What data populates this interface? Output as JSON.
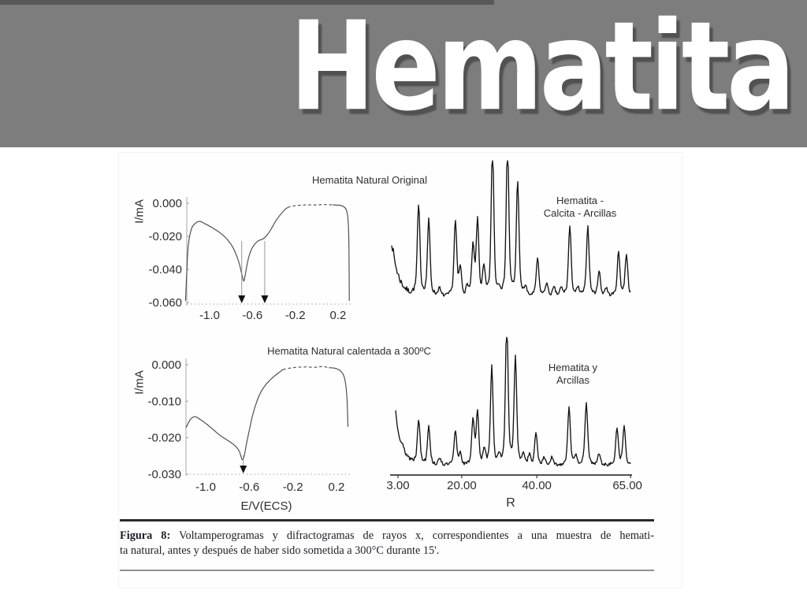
{
  "slide": {
    "title": "Hematita",
    "colors": {
      "band": "#7d7d7d",
      "top_strip": "#585858",
      "background": "#ffffff",
      "title_text": "#ffffff",
      "title_shadow": "#464646",
      "trace_dark": "#141414",
      "trace_gray": "#4a4a4a"
    }
  },
  "figure": {
    "caption": {
      "prefix": "Figura 8:",
      "line1_rest": " Voltamperogramas y difractogramas de rayos x, correspondientes a una muestra de hemati-",
      "line2": "ta natural, antes y después de haber sido sometida a 300°C durante 15'."
    }
  },
  "chart_data": [
    {
      "type": "line",
      "subtype": "voltammogram",
      "title": "Hematita Natural Original",
      "ylabel": "I/mA",
      "xlabel": "",
      "xlim": [
        -1.23,
        0.31
      ],
      "ylim": [
        -0.062,
        0.002
      ],
      "xticks": [
        -1.0,
        -0.6,
        -0.2,
        0.2
      ],
      "xtick_labels": [
        "-1.0",
        "-0.6",
        "-0.2",
        "0.2"
      ],
      "yticks": [
        0.0,
        -0.02,
        -0.04,
        -0.06
      ],
      "ytick_labels": [
        "0.000",
        "-0.020",
        "-0.040",
        "-0.060"
      ],
      "grid": false,
      "arrows_x": [
        -0.7,
        -0.485
      ],
      "series": [
        {
          "name": "cathodic-sweep",
          "style": "solid",
          "points": [
            [
              -1.225,
              -0.059
            ],
            [
              -1.215,
              -0.044
            ],
            [
              -1.2,
              -0.026
            ],
            [
              -1.17,
              -0.0155
            ],
            [
              -1.13,
              -0.012
            ],
            [
              -1.09,
              -0.011
            ],
            [
              -1.04,
              -0.0125
            ],
            [
              -0.97,
              -0.015
            ],
            [
              -0.9,
              -0.018
            ],
            [
              -0.84,
              -0.0215
            ],
            [
              -0.78,
              -0.027
            ],
            [
              -0.73,
              -0.035
            ],
            [
              -0.695,
              -0.044
            ],
            [
              -0.68,
              -0.047
            ],
            [
              -0.665,
              -0.0425
            ],
            [
              -0.64,
              -0.034
            ],
            [
              -0.61,
              -0.028
            ],
            [
              -0.575,
              -0.0245
            ],
            [
              -0.54,
              -0.0225
            ],
            [
              -0.5,
              -0.0215
            ],
            [
              -0.46,
              -0.019
            ],
            [
              -0.42,
              -0.015
            ],
            [
              -0.38,
              -0.0105
            ],
            [
              -0.34,
              -0.007
            ],
            [
              -0.3,
              -0.004
            ],
            [
              -0.27,
              -0.0025
            ]
          ]
        },
        {
          "name": "near-zero-plateau",
          "style": "dashed",
          "points": [
            [
              -0.27,
              -0.0025
            ],
            [
              -0.2,
              -0.0015
            ],
            [
              -0.1,
              -0.001
            ],
            [
              0.0,
              -0.001
            ],
            [
              0.08,
              -0.0008
            ],
            [
              0.15,
              -0.001
            ]
          ]
        },
        {
          "name": "anodic-edge",
          "style": "solid",
          "points": [
            [
              0.15,
              -0.001
            ],
            [
              0.21,
              -0.0012
            ],
            [
              0.25,
              -0.002
            ],
            [
              0.28,
              -0.0045
            ],
            [
              0.295,
              -0.012
            ],
            [
              0.302,
              -0.028
            ],
            [
              0.305,
              -0.059
            ]
          ]
        }
      ]
    },
    {
      "type": "line",
      "subtype": "xrd-diffractogram",
      "label_lines": [
        "Hematita -",
        "Calcita - Arcillas"
      ],
      "xlim": [
        1.3,
        65.0
      ],
      "background_decay": {
        "start_height": 0.41,
        "tau": 1.8
      },
      "noise_level": 0.02,
      "peaks": [
        {
          "r": 8.5,
          "i": 0.58
        },
        {
          "r": 11.2,
          "i": 0.49
        },
        {
          "r": 14.0,
          "i": 0.05
        },
        {
          "r": 18.3,
          "i": 0.48
        },
        {
          "r": 19.6,
          "i": 0.17
        },
        {
          "r": 21.5,
          "i": 0.06
        },
        {
          "r": 23.0,
          "i": 0.31
        },
        {
          "r": 24.2,
          "i": 0.48
        },
        {
          "r": 25.9,
          "i": 0.18
        },
        {
          "r": 28.2,
          "i": 0.98
        },
        {
          "r": 30.0,
          "i": 0.05
        },
        {
          "r": 32.2,
          "i": 1.0
        },
        {
          "r": 34.9,
          "i": 0.75
        },
        {
          "r": 37.0,
          "i": 0.06
        },
        {
          "r": 40.2,
          "i": 0.24
        },
        {
          "r": 42.6,
          "i": 0.08
        },
        {
          "r": 44.6,
          "i": 0.05
        },
        {
          "r": 46.5,
          "i": 0.05
        },
        {
          "r": 48.8,
          "i": 0.45
        },
        {
          "r": 51.0,
          "i": 0.05
        },
        {
          "r": 53.6,
          "i": 0.45
        },
        {
          "r": 56.6,
          "i": 0.16
        },
        {
          "r": 58.5,
          "i": 0.05
        },
        {
          "r": 61.8,
          "i": 0.28
        },
        {
          "r": 63.9,
          "i": 0.27
        }
      ]
    },
    {
      "type": "line",
      "subtype": "voltammogram",
      "title": "Hematita Natural calentada a 300ºC",
      "ylabel": "I/mA",
      "xlabel": "E/V(ECS)",
      "xlim": [
        -1.18,
        0.31
      ],
      "ylim": [
        -0.031,
        0.001
      ],
      "xticks": [
        -1.0,
        -0.6,
        -0.2,
        0.2
      ],
      "xtick_labels": [
        "-1.0",
        "-0.6",
        "-0.2",
        "0.2"
      ],
      "yticks": [
        0.0,
        -0.01,
        -0.02,
        -0.03
      ],
      "ytick_labels": [
        "0.000",
        "-0.010",
        "-0.020",
        "-0.030"
      ],
      "grid": false,
      "arrows_x": [
        -0.655
      ],
      "series": [
        {
          "name": "cathodic-sweep",
          "style": "solid",
          "points": [
            [
              -1.18,
              -0.0172
            ],
            [
              -1.14,
              -0.015
            ],
            [
              -1.1,
              -0.0142
            ],
            [
              -1.05,
              -0.015
            ],
            [
              -0.99,
              -0.0163
            ],
            [
              -0.93,
              -0.0178
            ],
            [
              -0.87,
              -0.0193
            ],
            [
              -0.81,
              -0.0205
            ],
            [
              -0.76,
              -0.0215
            ],
            [
              -0.72,
              -0.0225
            ],
            [
              -0.69,
              -0.0238
            ],
            [
              -0.665,
              -0.026
            ],
            [
              -0.645,
              -0.0248
            ],
            [
              -0.625,
              -0.0215
            ],
            [
              -0.6,
              -0.018
            ],
            [
              -0.575,
              -0.0145
            ],
            [
              -0.55,
              -0.0118
            ],
            [
              -0.52,
              -0.0092
            ],
            [
              -0.49,
              -0.0073
            ],
            [
              -0.45,
              -0.0055
            ],
            [
              -0.41,
              -0.0042
            ],
            [
              -0.37,
              -0.0031
            ],
            [
              -0.33,
              -0.0022
            ],
            [
              -0.29,
              -0.0013
            ]
          ]
        },
        {
          "name": "near-zero-plateau",
          "style": "dashed",
          "points": [
            [
              -0.29,
              -0.0013
            ],
            [
              -0.2,
              -0.0008
            ],
            [
              -0.1,
              -0.0006
            ],
            [
              0.0,
              -0.0007
            ],
            [
              0.07,
              -0.0005
            ],
            [
              0.13,
              -0.0008
            ]
          ]
        },
        {
          "name": "anodic-edge",
          "style": "solid",
          "points": [
            [
              0.13,
              -0.0008
            ],
            [
              0.19,
              -0.001
            ],
            [
              0.24,
              -0.0018
            ],
            [
              0.275,
              -0.0038
            ],
            [
              0.295,
              -0.0085
            ],
            [
              0.305,
              -0.017
            ]
          ]
        }
      ]
    },
    {
      "type": "line",
      "subtype": "xrd-diffractogram",
      "label_lines": [
        "Hematita y",
        "Arcillas"
      ],
      "xlabel": "R",
      "xlim": [
        2.4,
        65.0
      ],
      "xticks": [
        3.0,
        20.0,
        40.0,
        65.0
      ],
      "xtick_labels": [
        "3.00",
        "20.00",
        "40.00",
        "65.00"
      ],
      "background_decay": {
        "start_height": 0.43,
        "tau": 1.8
      },
      "noise_level": 0.02,
      "peaks": [
        {
          "r": 8.5,
          "i": 0.31
        },
        {
          "r": 11.2,
          "i": 0.27
        },
        {
          "r": 14.2,
          "i": 0.05
        },
        {
          "r": 18.3,
          "i": 0.23
        },
        {
          "r": 19.6,
          "i": 0.08
        },
        {
          "r": 23.0,
          "i": 0.31
        },
        {
          "r": 24.2,
          "i": 0.35
        },
        {
          "r": 26.0,
          "i": 0.1
        },
        {
          "r": 28.0,
          "i": 0.68
        },
        {
          "r": 30.0,
          "i": 0.06
        },
        {
          "r": 32.0,
          "i": 1.0
        },
        {
          "r": 34.3,
          "i": 0.74
        },
        {
          "r": 36.5,
          "i": 0.08
        },
        {
          "r": 38.0,
          "i": 0.07
        },
        {
          "r": 39.8,
          "i": 0.22
        },
        {
          "r": 42.0,
          "i": 0.05
        },
        {
          "r": 44.0,
          "i": 0.05
        },
        {
          "r": 48.6,
          "i": 0.4
        },
        {
          "r": 50.5,
          "i": 0.06
        },
        {
          "r": 53.2,
          "i": 0.43
        },
        {
          "r": 56.6,
          "i": 0.08
        },
        {
          "r": 61.4,
          "i": 0.25
        },
        {
          "r": 63.3,
          "i": 0.26
        }
      ]
    }
  ]
}
